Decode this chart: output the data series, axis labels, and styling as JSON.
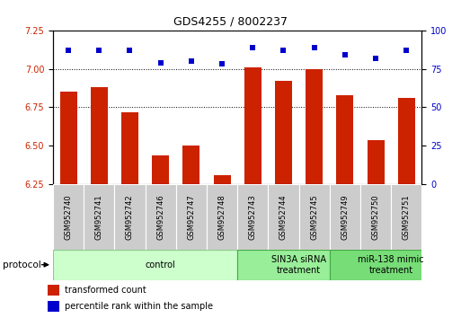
{
  "title": "GDS4255 / 8002237",
  "samples": [
    "GSM952740",
    "GSM952741",
    "GSM952742",
    "GSM952746",
    "GSM952747",
    "GSM952748",
    "GSM952743",
    "GSM952744",
    "GSM952745",
    "GSM952749",
    "GSM952750",
    "GSM952751"
  ],
  "bar_values": [
    6.85,
    6.88,
    6.72,
    6.44,
    6.5,
    6.31,
    7.01,
    6.92,
    7.0,
    6.83,
    6.54,
    6.81
  ],
  "dot_values": [
    87,
    87,
    87,
    79,
    80,
    78,
    89,
    87,
    89,
    84,
    82,
    87
  ],
  "bar_color": "#cc2200",
  "dot_color": "#0000cc",
  "ylim_left": [
    6.25,
    7.25
  ],
  "ylim_right": [
    0,
    100
  ],
  "yticks_left": [
    6.25,
    6.5,
    6.75,
    7.0,
    7.25
  ],
  "yticks_right": [
    0,
    25,
    50,
    75,
    100
  ],
  "groups": [
    {
      "label": "control",
      "start": 0,
      "end": 6,
      "color": "#ccffcc",
      "edge_color": "#88cc88"
    },
    {
      "label": "SIN3A siRNA\ntreatment",
      "start": 6,
      "end": 9,
      "color": "#99ee99",
      "edge_color": "#44aa44"
    },
    {
      "label": "miR-138 mimic\ntreatment",
      "start": 9,
      "end": 12,
      "color": "#77dd77",
      "edge_color": "#44aa44"
    }
  ],
  "protocol_label": "protocol",
  "legend_bar_label": "transformed count",
  "legend_dot_label": "percentile rank within the sample",
  "bar_width": 0.55,
  "bg_color": "#ffffff",
  "label_bg": "#cccccc",
  "title_fontsize": 9,
  "tick_fontsize": 7,
  "sample_fontsize": 6,
  "group_fontsize": 7,
  "legend_fontsize": 7
}
